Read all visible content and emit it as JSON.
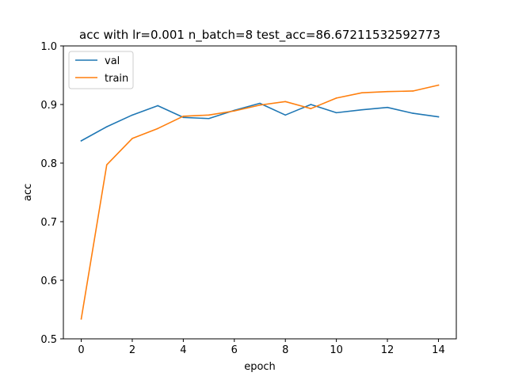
{
  "chart_data": {
    "type": "line",
    "title": "acc with lr=0.001 n_batch=8 test_acc=86.67211532592773",
    "xlabel": "epoch",
    "ylabel": "acc",
    "x": [
      0,
      1,
      2,
      3,
      4,
      5,
      6,
      7,
      8,
      9,
      10,
      11,
      12,
      13,
      14
    ],
    "xlim": [
      -0.7,
      14.7
    ],
    "ylim": [
      0.5,
      1.0
    ],
    "xticks": [
      0,
      2,
      4,
      6,
      8,
      10,
      12,
      14
    ],
    "yticks": [
      0.5,
      0.6,
      0.7,
      0.8,
      0.9,
      1.0
    ],
    "xtick_labels": [
      "0",
      "2",
      "4",
      "6",
      "8",
      "10",
      "12",
      "14"
    ],
    "ytick_labels": [
      "0.5",
      "0.6",
      "0.7",
      "0.8",
      "0.9",
      "1.0"
    ],
    "grid": false,
    "legend_position": "top-left",
    "series": [
      {
        "name": "val",
        "color": "#1f77b4",
        "values": [
          0.838,
          0.862,
          0.882,
          0.898,
          0.878,
          0.876,
          0.89,
          0.902,
          0.882,
          0.9,
          0.886,
          0.891,
          0.895,
          0.885,
          0.879
        ]
      },
      {
        "name": "train",
        "color": "#ff7f0e",
        "values": [
          0.534,
          0.797,
          0.842,
          0.859,
          0.88,
          0.882,
          0.889,
          0.899,
          0.905,
          0.893,
          0.911,
          0.92,
          0.922,
          0.923,
          0.933
        ]
      }
    ]
  }
}
